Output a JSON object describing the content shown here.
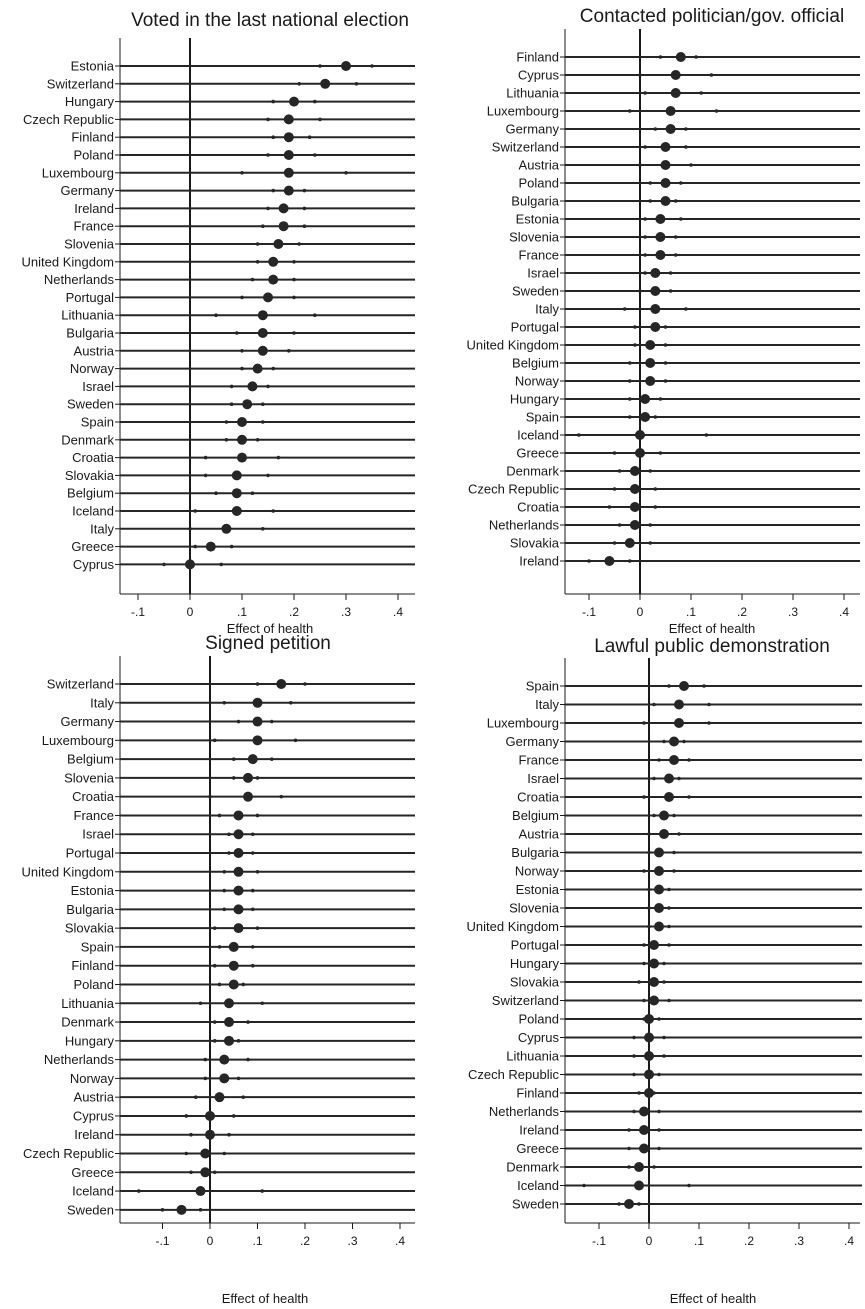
{
  "colors": {
    "marker": "#262626",
    "line": "#262626",
    "axis": "#1a1a1a"
  },
  "chart_data": [
    {
      "type": "scatter",
      "title": "Voted in the last national election",
      "xlabel": "Effect of health",
      "xlim": [
        -0.15,
        0.42
      ],
      "xticks": [
        -0.1,
        0,
        0.1,
        0.2,
        0.3,
        0.4
      ],
      "xtick_labels": [
        "-.1",
        "0",
        ".1",
        ".2",
        ".3",
        ".4"
      ],
      "reference_line": 0,
      "categories": [
        "Estonia",
        "Switzerland",
        "Hungary",
        "Czech Republic",
        "Finland",
        "Poland",
        "Luxembourg",
        "Germany",
        "Ireland",
        "France",
        "Slovenia",
        "United Kingdom",
        "Netherlands",
        "Portugal",
        "Lithuania",
        "Bulgaria",
        "Austria",
        "Norway",
        "Israel",
        "Sweden",
        "Spain",
        "Denmark",
        "Croatia",
        "Slovakia",
        "Belgium",
        "Iceland",
        "Italy",
        "Greece",
        "Cyprus"
      ],
      "points": [
        {
          "value": 0.3,
          "ci_low": 0.25,
          "ci_high": 0.35
        },
        {
          "value": 0.26,
          "ci_low": 0.21,
          "ci_high": 0.32
        },
        {
          "value": 0.2,
          "ci_low": 0.16,
          "ci_high": 0.24
        },
        {
          "value": 0.19,
          "ci_low": 0.15,
          "ci_high": 0.25
        },
        {
          "value": 0.19,
          "ci_low": 0.16,
          "ci_high": 0.23
        },
        {
          "value": 0.19,
          "ci_low": 0.15,
          "ci_high": 0.24
        },
        {
          "value": 0.19,
          "ci_low": 0.1,
          "ci_high": 0.3
        },
        {
          "value": 0.19,
          "ci_low": 0.16,
          "ci_high": 0.22
        },
        {
          "value": 0.18,
          "ci_low": 0.15,
          "ci_high": 0.22
        },
        {
          "value": 0.18,
          "ci_low": 0.14,
          "ci_high": 0.22
        },
        {
          "value": 0.17,
          "ci_low": 0.13,
          "ci_high": 0.21
        },
        {
          "value": 0.16,
          "ci_low": 0.13,
          "ci_high": 0.2
        },
        {
          "value": 0.16,
          "ci_low": 0.12,
          "ci_high": 0.2
        },
        {
          "value": 0.15,
          "ci_low": 0.1,
          "ci_high": 0.2
        },
        {
          "value": 0.14,
          "ci_low": 0.05,
          "ci_high": 0.24
        },
        {
          "value": 0.14,
          "ci_low": 0.09,
          "ci_high": 0.2
        },
        {
          "value": 0.14,
          "ci_low": 0.1,
          "ci_high": 0.19
        },
        {
          "value": 0.13,
          "ci_low": 0.1,
          "ci_high": 0.16
        },
        {
          "value": 0.12,
          "ci_low": 0.08,
          "ci_high": 0.15
        },
        {
          "value": 0.11,
          "ci_low": 0.08,
          "ci_high": 0.14
        },
        {
          "value": 0.1,
          "ci_low": 0.07,
          "ci_high": 0.14
        },
        {
          "value": 0.1,
          "ci_low": 0.07,
          "ci_high": 0.13
        },
        {
          "value": 0.1,
          "ci_low": 0.03,
          "ci_high": 0.17
        },
        {
          "value": 0.09,
          "ci_low": 0.03,
          "ci_high": 0.15
        },
        {
          "value": 0.09,
          "ci_low": 0.05,
          "ci_high": 0.12
        },
        {
          "value": 0.09,
          "ci_low": 0.01,
          "ci_high": 0.16
        },
        {
          "value": 0.07,
          "ci_low": 0.0,
          "ci_high": 0.14
        },
        {
          "value": 0.04,
          "ci_low": 0.01,
          "ci_high": 0.08
        },
        {
          "value": 0.0,
          "ci_low": -0.05,
          "ci_high": 0.06
        }
      ]
    },
    {
      "type": "scatter",
      "title": "Contacted politician/gov. official",
      "xlabel": "Effect of health",
      "xlim": [
        -0.15,
        0.42
      ],
      "xticks": [
        -0.1,
        0,
        0.1,
        0.2,
        0.3,
        0.4
      ],
      "xtick_labels": [
        "-.1",
        "0",
        ".1",
        ".2",
        ".3",
        ".4"
      ],
      "reference_line": 0,
      "categories": [
        "Finland",
        "Cyprus",
        "Lithuania",
        "Luxembourg",
        "Germany",
        "Switzerland",
        "Austria",
        "Poland",
        "Bulgaria",
        "Estonia",
        "Slovenia",
        "France",
        "Israel",
        "Sweden",
        "Italy",
        "Portugal",
        "United Kingdom",
        "Belgium",
        "Norway",
        "Hungary",
        "Spain",
        "Iceland",
        "Greece",
        "Denmark",
        "Czech Republic",
        "Croatia",
        "Netherlands",
        "Slovakia",
        "Ireland"
      ],
      "points": [
        {
          "value": 0.08,
          "ci_low": 0.04,
          "ci_high": 0.11
        },
        {
          "value": 0.07,
          "ci_low": 0.0,
          "ci_high": 0.14
        },
        {
          "value": 0.07,
          "ci_low": 0.01,
          "ci_high": 0.12
        },
        {
          "value": 0.06,
          "ci_low": -0.02,
          "ci_high": 0.15
        },
        {
          "value": 0.06,
          "ci_low": 0.03,
          "ci_high": 0.09
        },
        {
          "value": 0.05,
          "ci_low": 0.01,
          "ci_high": 0.09
        },
        {
          "value": 0.05,
          "ci_low": 0.0,
          "ci_high": 0.1
        },
        {
          "value": 0.05,
          "ci_low": 0.02,
          "ci_high": 0.08
        },
        {
          "value": 0.05,
          "ci_low": 0.02,
          "ci_high": 0.07
        },
        {
          "value": 0.04,
          "ci_low": 0.01,
          "ci_high": 0.08
        },
        {
          "value": 0.04,
          "ci_low": 0.01,
          "ci_high": 0.07
        },
        {
          "value": 0.04,
          "ci_low": 0.01,
          "ci_high": 0.07
        },
        {
          "value": 0.03,
          "ci_low": 0.01,
          "ci_high": 0.06
        },
        {
          "value": 0.03,
          "ci_low": 0.0,
          "ci_high": 0.06
        },
        {
          "value": 0.03,
          "ci_low": -0.03,
          "ci_high": 0.09
        },
        {
          "value": 0.03,
          "ci_low": -0.01,
          "ci_high": 0.05
        },
        {
          "value": 0.02,
          "ci_low": -0.01,
          "ci_high": 0.05
        },
        {
          "value": 0.02,
          "ci_low": -0.02,
          "ci_high": 0.05
        },
        {
          "value": 0.02,
          "ci_low": -0.02,
          "ci_high": 0.05
        },
        {
          "value": 0.01,
          "ci_low": -0.02,
          "ci_high": 0.04
        },
        {
          "value": 0.01,
          "ci_low": -0.02,
          "ci_high": 0.03
        },
        {
          "value": 0.0,
          "ci_low": -0.12,
          "ci_high": 0.13
        },
        {
          "value": 0.0,
          "ci_low": -0.05,
          "ci_high": 0.04
        },
        {
          "value": -0.01,
          "ci_low": -0.04,
          "ci_high": 0.02
        },
        {
          "value": -0.01,
          "ci_low": -0.05,
          "ci_high": 0.03
        },
        {
          "value": -0.01,
          "ci_low": -0.06,
          "ci_high": 0.03
        },
        {
          "value": -0.01,
          "ci_low": -0.04,
          "ci_high": 0.02
        },
        {
          "value": -0.02,
          "ci_low": -0.05,
          "ci_high": 0.02
        },
        {
          "value": -0.06,
          "ci_low": -0.1,
          "ci_high": -0.02
        }
      ]
    },
    {
      "type": "scatter",
      "title": "Signed petition",
      "xlabel": "Effect of health",
      "xlim": [
        -0.19,
        0.41
      ],
      "xticks": [
        -0.1,
        0,
        0.1,
        0.2,
        0.3,
        0.4
      ],
      "xtick_labels": [
        "-.1",
        "0",
        ".1",
        ".2",
        ".3",
        ".4"
      ],
      "reference_line": 0,
      "categories": [
        "Switzerland",
        "Italy",
        "Germany",
        "Luxembourg",
        "Belgium",
        "Slovenia",
        "Croatia",
        "France",
        "Israel",
        "Portugal",
        "United Kingdom",
        "Estonia",
        "Bulgaria",
        "Slovakia",
        "Spain",
        "Finland",
        "Poland",
        "Lithuania",
        "Denmark",
        "Hungary",
        "Netherlands",
        "Norway",
        "Austria",
        "Cyprus",
        "Ireland",
        "Czech Republic",
        "Greece",
        "Iceland",
        "Sweden"
      ],
      "points": [
        {
          "value": 0.15,
          "ci_low": 0.1,
          "ci_high": 0.2
        },
        {
          "value": 0.1,
          "ci_low": 0.03,
          "ci_high": 0.17
        },
        {
          "value": 0.1,
          "ci_low": 0.06,
          "ci_high": 0.13
        },
        {
          "value": 0.1,
          "ci_low": 0.01,
          "ci_high": 0.18
        },
        {
          "value": 0.09,
          "ci_low": 0.05,
          "ci_high": 0.13
        },
        {
          "value": 0.08,
          "ci_low": 0.05,
          "ci_high": 0.1
        },
        {
          "value": 0.08,
          "ci_low": 0.0,
          "ci_high": 0.15
        },
        {
          "value": 0.06,
          "ci_low": 0.02,
          "ci_high": 0.1
        },
        {
          "value": 0.06,
          "ci_low": 0.04,
          "ci_high": 0.09
        },
        {
          "value": 0.06,
          "ci_low": 0.04,
          "ci_high": 0.09
        },
        {
          "value": 0.06,
          "ci_low": 0.03,
          "ci_high": 0.1
        },
        {
          "value": 0.06,
          "ci_low": 0.03,
          "ci_high": 0.09
        },
        {
          "value": 0.06,
          "ci_low": 0.03,
          "ci_high": 0.09
        },
        {
          "value": 0.06,
          "ci_low": 0.01,
          "ci_high": 0.1
        },
        {
          "value": 0.05,
          "ci_low": 0.02,
          "ci_high": 0.09
        },
        {
          "value": 0.05,
          "ci_low": 0.01,
          "ci_high": 0.09
        },
        {
          "value": 0.05,
          "ci_low": 0.02,
          "ci_high": 0.07
        },
        {
          "value": 0.04,
          "ci_low": -0.02,
          "ci_high": 0.11
        },
        {
          "value": 0.04,
          "ci_low": 0.01,
          "ci_high": 0.08
        },
        {
          "value": 0.04,
          "ci_low": 0.01,
          "ci_high": 0.06
        },
        {
          "value": 0.03,
          "ci_low": -0.01,
          "ci_high": 0.08
        },
        {
          "value": 0.03,
          "ci_low": -0.01,
          "ci_high": 0.06
        },
        {
          "value": 0.02,
          "ci_low": -0.03,
          "ci_high": 0.07
        },
        {
          "value": 0.0,
          "ci_low": -0.05,
          "ci_high": 0.05
        },
        {
          "value": 0.0,
          "ci_low": -0.04,
          "ci_high": 0.04
        },
        {
          "value": -0.01,
          "ci_low": -0.05,
          "ci_high": 0.03
        },
        {
          "value": -0.01,
          "ci_low": -0.04,
          "ci_high": 0.01
        },
        {
          "value": -0.02,
          "ci_low": -0.15,
          "ci_high": 0.11
        },
        {
          "value": -0.06,
          "ci_low": -0.1,
          "ci_high": -0.02
        }
      ]
    },
    {
      "type": "scatter",
      "title": "Lawful public demonstration",
      "xlabel": "Effect of health",
      "xlim": [
        -0.15,
        0.42
      ],
      "xticks": [
        -0.1,
        0,
        0.1,
        0.2,
        0.3,
        0.4
      ],
      "xtick_labels": [
        "-.1",
        "0",
        ".1",
        ".2",
        ".3",
        ".4"
      ],
      "reference_line": 0,
      "categories": [
        "Spain",
        "Italy",
        "Luxembourg",
        "Germany",
        "France",
        "Israel",
        "Croatia",
        "Belgium",
        "Austria",
        "Bulgaria",
        "Norway",
        "Estonia",
        "Slovenia",
        "United Kingdom",
        "Portugal",
        "Hungary",
        "Slovakia",
        "Switzerland",
        "Poland",
        "Cyprus",
        "Lithuania",
        "Czech Republic",
        "Finland",
        "Netherlands",
        "Ireland",
        "Greece",
        "Denmark",
        "Iceland",
        "Sweden"
      ],
      "points": [
        {
          "value": 0.07,
          "ci_low": 0.04,
          "ci_high": 0.11
        },
        {
          "value": 0.06,
          "ci_low": 0.01,
          "ci_high": 0.12
        },
        {
          "value": 0.06,
          "ci_low": -0.01,
          "ci_high": 0.12
        },
        {
          "value": 0.05,
          "ci_low": 0.03,
          "ci_high": 0.07
        },
        {
          "value": 0.05,
          "ci_low": 0.02,
          "ci_high": 0.08
        },
        {
          "value": 0.04,
          "ci_low": 0.01,
          "ci_high": 0.06
        },
        {
          "value": 0.04,
          "ci_low": -0.01,
          "ci_high": 0.08
        },
        {
          "value": 0.03,
          "ci_low": 0.01,
          "ci_high": 0.05
        },
        {
          "value": 0.03,
          "ci_low": 0.0,
          "ci_high": 0.06
        },
        {
          "value": 0.02,
          "ci_low": 0.0,
          "ci_high": 0.05
        },
        {
          "value": 0.02,
          "ci_low": -0.01,
          "ci_high": 0.05
        },
        {
          "value": 0.02,
          "ci_low": 0.0,
          "ci_high": 0.04
        },
        {
          "value": 0.02,
          "ci_low": 0.0,
          "ci_high": 0.04
        },
        {
          "value": 0.02,
          "ci_low": 0.0,
          "ci_high": 0.04
        },
        {
          "value": 0.01,
          "ci_low": -0.01,
          "ci_high": 0.04
        },
        {
          "value": 0.01,
          "ci_low": -0.01,
          "ci_high": 0.03
        },
        {
          "value": 0.01,
          "ci_low": -0.02,
          "ci_high": 0.03
        },
        {
          "value": 0.01,
          "ci_low": -0.01,
          "ci_high": 0.04
        },
        {
          "value": 0.0,
          "ci_low": -0.01,
          "ci_high": 0.02
        },
        {
          "value": 0.0,
          "ci_low": -0.03,
          "ci_high": 0.03
        },
        {
          "value": 0.0,
          "ci_low": -0.03,
          "ci_high": 0.03
        },
        {
          "value": 0.0,
          "ci_low": -0.03,
          "ci_high": 0.02
        },
        {
          "value": 0.0,
          "ci_low": -0.02,
          "ci_high": 0.01
        },
        {
          "value": -0.01,
          "ci_low": -0.03,
          "ci_high": 0.02
        },
        {
          "value": -0.01,
          "ci_low": -0.04,
          "ci_high": 0.02
        },
        {
          "value": -0.01,
          "ci_low": -0.04,
          "ci_high": 0.02
        },
        {
          "value": -0.02,
          "ci_low": -0.04,
          "ci_high": 0.01
        },
        {
          "value": -0.02,
          "ci_low": -0.13,
          "ci_high": 0.08
        },
        {
          "value": -0.04,
          "ci_low": -0.06,
          "ci_high": -0.02
        }
      ]
    }
  ]
}
